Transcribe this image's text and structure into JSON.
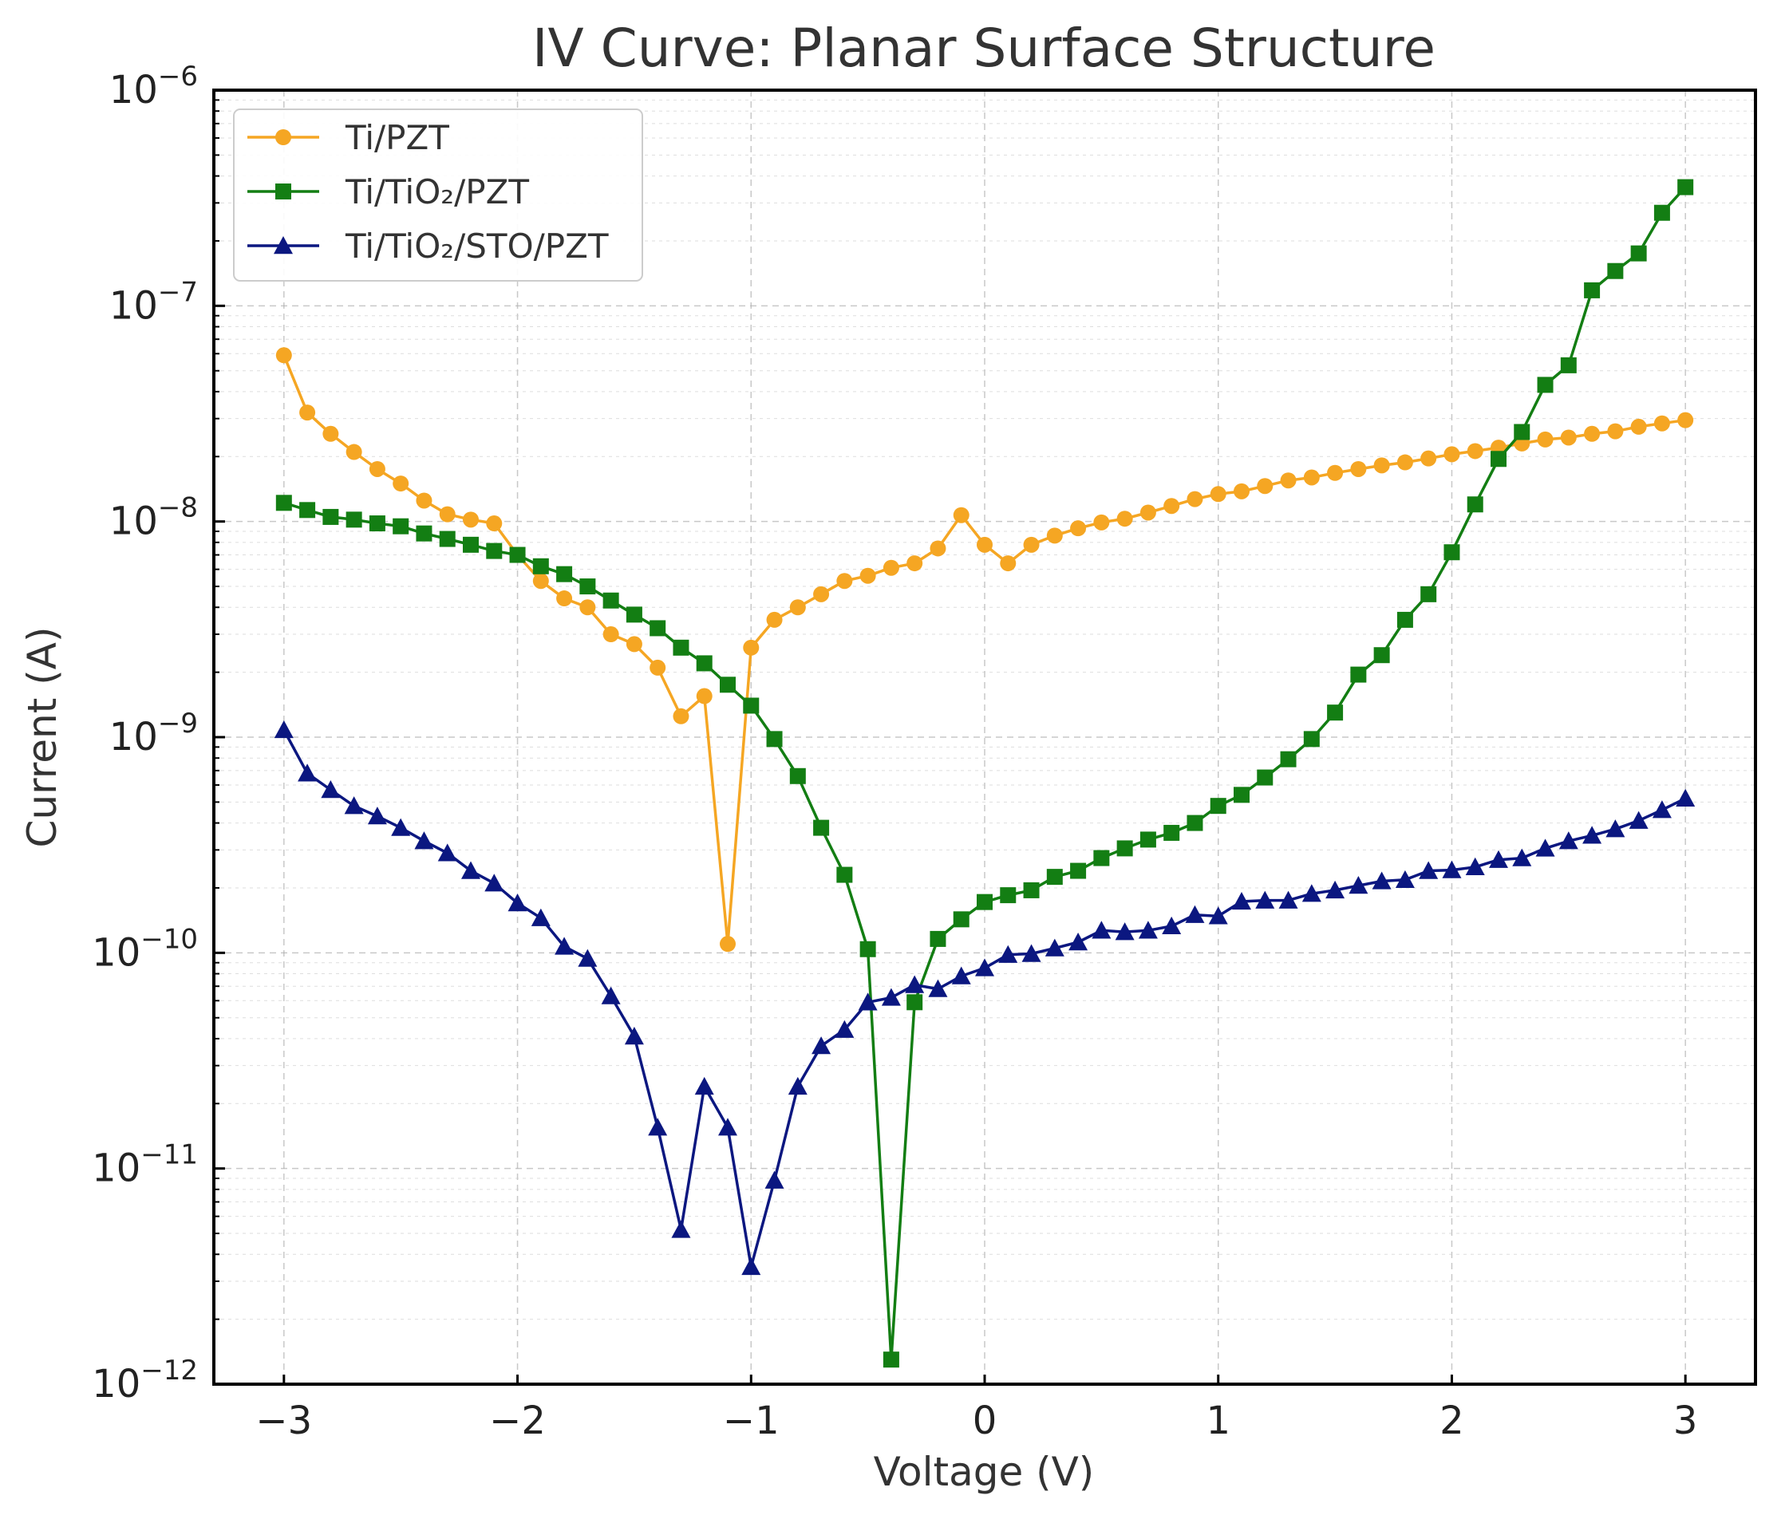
{
  "chart_data": {
    "type": "line",
    "title": "IV Curve: Planar Surface Structure",
    "xlabel": "Voltage (V)",
    "ylabel": "Current (A)",
    "xlim": [
      -3.3,
      3.3
    ],
    "ylim": [
      1e-12,
      1e-06
    ],
    "yscale": "log",
    "grid": true,
    "legend_position": "top-left",
    "x_ticks": [
      -3,
      -2,
      -1,
      0,
      1,
      2,
      3
    ],
    "x_tick_labels": [
      "−3",
      "−2",
      "−1",
      "0",
      "1",
      "2",
      "3"
    ],
    "y_ticks": [
      -12,
      -11,
      -10,
      -9,
      -8,
      -7,
      -6
    ],
    "y_tick_base": "10",
    "y_tick_exponents": [
      "−12",
      "−11",
      "−10",
      "−9",
      "−8",
      "−7",
      "−6"
    ],
    "x": [
      -3.0,
      -2.9,
      -2.8,
      -2.7,
      -2.6,
      -2.5,
      -2.4,
      -2.3,
      -2.2,
      -2.1,
      -2.0,
      -1.9,
      -1.8,
      -1.7,
      -1.6,
      -1.5,
      -1.4,
      -1.3,
      -1.2,
      -1.1,
      -1.0,
      -0.9,
      -0.8,
      -0.7,
      -0.6,
      -0.5,
      -0.4,
      -0.3,
      -0.2,
      -0.1,
      0.0,
      0.1,
      0.2,
      0.3,
      0.4,
      0.5,
      0.6,
      0.7,
      0.8,
      0.9,
      1.0,
      1.1,
      1.2,
      1.3,
      1.4,
      1.5,
      1.6,
      1.7,
      1.8,
      1.9,
      2.0,
      2.1,
      2.2,
      2.3,
      2.4,
      2.5,
      2.6,
      2.7,
      2.8,
      2.9,
      3.0
    ],
    "series": [
      {
        "name": "Ti/PZT",
        "color": "#f5a623",
        "marker": "circle",
        "values": [
          5.9e-08,
          3.2e-08,
          2.55e-08,
          2.1e-08,
          1.75e-08,
          1.5e-08,
          1.25e-08,
          1.08e-08,
          1.02e-08,
          9.8e-09,
          7e-09,
          5.3e-09,
          4.4e-09,
          4e-09,
          3e-09,
          2.7e-09,
          2.1e-09,
          1.25e-09,
          1.55e-09,
          1.1e-10,
          2.6e-09,
          3.5e-09,
          4e-09,
          4.6e-09,
          5.3e-09,
          5.6e-09,
          6.1e-09,
          6.4e-09,
          7.5e-09,
          1.07e-08,
          7.8e-09,
          6.4e-09,
          7.8e-09,
          8.6e-09,
          9.3e-09,
          9.9e-09,
          1.03e-08,
          1.1e-08,
          1.18e-08,
          1.27e-08,
          1.34e-08,
          1.38e-08,
          1.46e-08,
          1.55e-08,
          1.6e-08,
          1.68e-08,
          1.75e-08,
          1.82e-08,
          1.88e-08,
          1.96e-08,
          2.05e-08,
          2.12e-08,
          2.2e-08,
          2.3e-08,
          2.4e-08,
          2.45e-08,
          2.55e-08,
          2.62e-08,
          2.75e-08,
          2.85e-08,
          2.95e-08
        ]
      },
      {
        "name": "Ti/TiO₂/PZT",
        "color": "#137e13",
        "marker": "square",
        "values": [
          1.22e-08,
          1.13e-08,
          1.05e-08,
          1.02e-08,
          9.8e-09,
          9.5e-09,
          8.8e-09,
          8.3e-09,
          7.8e-09,
          7.3e-09,
          7e-09,
          6.2e-09,
          5.7e-09,
          5e-09,
          4.3e-09,
          3.7e-09,
          3.2e-09,
          2.6e-09,
          2.2e-09,
          1.75e-09,
          1.4e-09,
          9.8e-10,
          6.6e-10,
          3.8e-10,
          2.3e-10,
          1.04e-10,
          1.3e-12,
          5.9e-11,
          1.16e-10,
          1.43e-10,
          1.72e-10,
          1.85e-10,
          1.95e-10,
          2.25e-10,
          2.4e-10,
          2.75e-10,
          3.05e-10,
          3.35e-10,
          3.6e-10,
          4e-10,
          4.8e-10,
          5.4e-10,
          6.5e-10,
          7.9e-10,
          9.8e-10,
          1.3e-09,
          1.95e-09,
          2.4e-09,
          3.5e-09,
          4.6e-09,
          7.2e-09,
          1.2e-08,
          1.95e-08,
          2.6e-08,
          4.3e-08,
          5.3e-08,
          1.18e-07,
          1.45e-07,
          1.75e-07,
          2.7e-07,
          3.55e-07
        ]
      },
      {
        "name": "Ti/TiO₂/STO/PZT",
        "color": "#0b1780",
        "marker": "triangle",
        "values": [
          1.08e-09,
          6.8e-10,
          5.7e-10,
          4.8e-10,
          4.3e-10,
          3.8e-10,
          3.3e-10,
          2.9e-10,
          2.4e-10,
          2.1e-10,
          1.7e-10,
          1.45e-10,
          1.07e-10,
          9.4e-11,
          6.3e-11,
          4.1e-11,
          1.55e-11,
          5.2e-12,
          2.4e-11,
          1.55e-11,
          3.5e-12,
          8.8e-12,
          2.4e-11,
          3.7e-11,
          4.4e-11,
          5.9e-11,
          6.2e-11,
          7.1e-11,
          6.8e-11,
          7.8e-11,
          8.5e-11,
          9.8e-11,
          9.9e-11,
          1.05e-10,
          1.12e-10,
          1.27e-10,
          1.25e-10,
          1.27e-10,
          1.33e-10,
          1.5e-10,
          1.48e-10,
          1.73e-10,
          1.75e-10,
          1.75e-10,
          1.88e-10,
          1.95e-10,
          2.05e-10,
          2.15e-10,
          2.18e-10,
          2.4e-10,
          2.42e-10,
          2.5e-10,
          2.7e-10,
          2.75e-10,
          3.05e-10,
          3.3e-10,
          3.5e-10,
          3.75e-10,
          4.1e-10,
          4.6e-10,
          5.2e-10
        ]
      }
    ]
  }
}
